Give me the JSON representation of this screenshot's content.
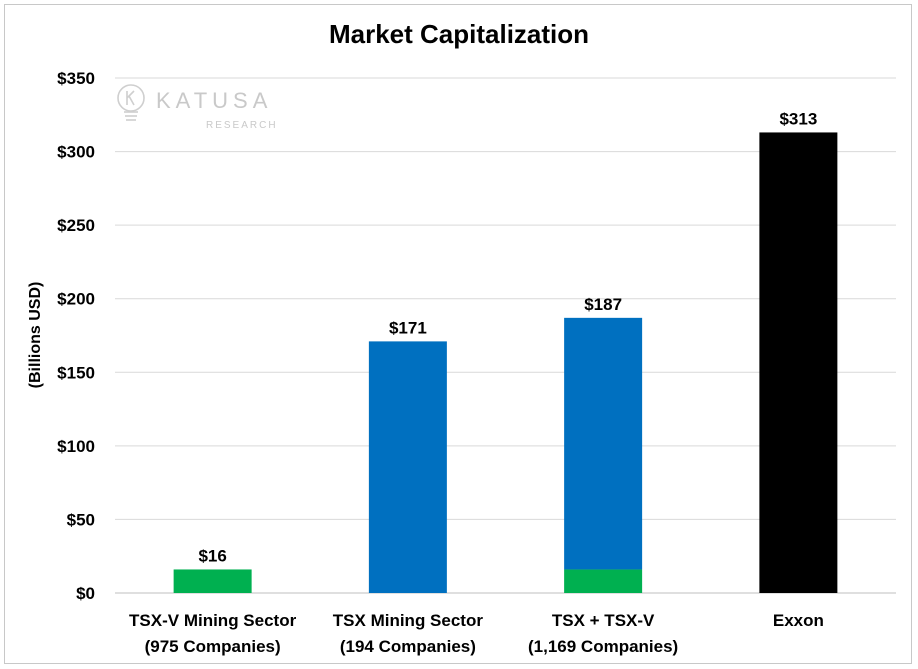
{
  "chart_data": {
    "type": "bar",
    "title": "Market Capitalization",
    "ylabel": "(Billions USD)",
    "xlabel": "",
    "ylim": [
      0,
      350
    ],
    "y_ticks": [
      {
        "value": 0,
        "label": "$0"
      },
      {
        "value": 50,
        "label": "$50"
      },
      {
        "value": 100,
        "label": "$100"
      },
      {
        "value": 150,
        "label": "$150"
      },
      {
        "value": 200,
        "label": "$200"
      },
      {
        "value": 250,
        "label": "$250"
      },
      {
        "value": 300,
        "label": "$300"
      },
      {
        "value": 350,
        "label": "$350"
      }
    ],
    "grid": true,
    "legend": "none",
    "categories": [
      [
        "TSX-V Mining Sector",
        "(975 Companies)"
      ],
      [
        "TSX Mining Sector",
        "(194 Companies)"
      ],
      [
        "TSX + TSX-V",
        "(1,169 Companies)"
      ],
      [
        "Exxon"
      ]
    ],
    "bars": [
      {
        "total": 16,
        "label": "$16",
        "segments": [
          {
            "value": 16,
            "color": "#00b050"
          }
        ]
      },
      {
        "total": 171,
        "label": "$171",
        "segments": [
          {
            "value": 171,
            "color": "#0070c0"
          }
        ]
      },
      {
        "total": 187,
        "label": "$187",
        "segments": [
          {
            "value": 16,
            "color": "#00b050"
          },
          {
            "value": 171,
            "color": "#0070c0"
          }
        ]
      },
      {
        "total": 313,
        "label": "$313",
        "segments": [
          {
            "value": 313,
            "color": "#000000"
          }
        ]
      }
    ]
  },
  "watermark": {
    "brand": "KATUSA",
    "sub": "RESEARCH",
    "icon": "lightbulb-icon"
  }
}
